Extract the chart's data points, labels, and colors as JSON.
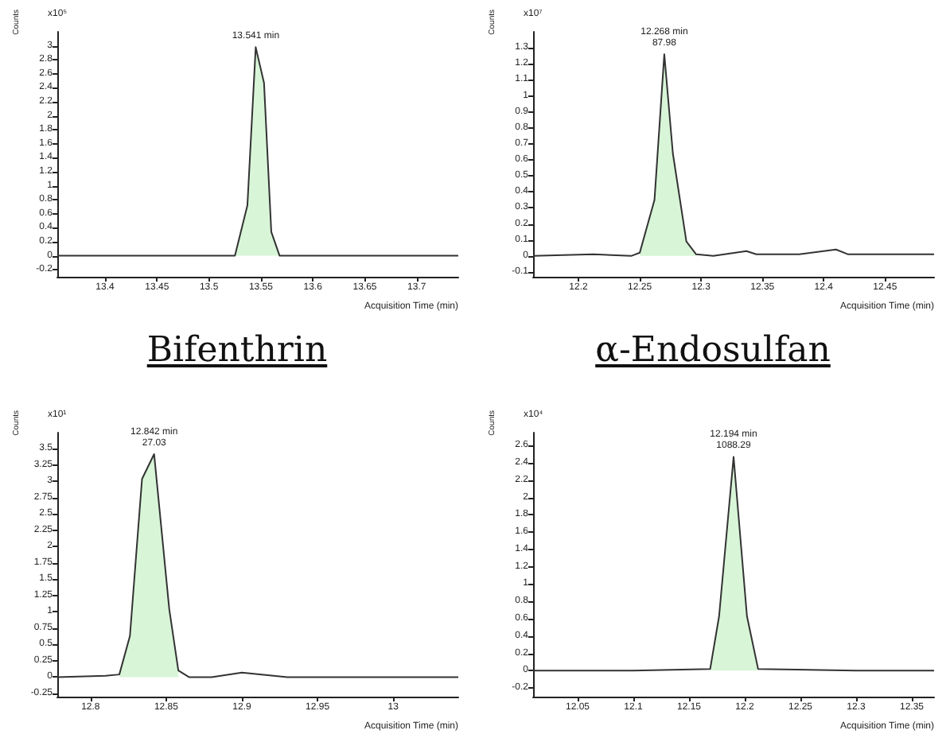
{
  "chart_data": [
    {
      "type": "line",
      "title": "Bifenthrin",
      "xlabel": "Acquisition Time (min)",
      "ylabel": "Counts",
      "marker": "none",
      "line_style": "solid",
      "grid": false,
      "annotations": [
        "x10⁵",
        {
          "text": "13.541 min",
          "x": 13.545,
          "y": 2.98
        }
      ],
      "xlim": [
        13.354,
        13.74
      ],
      "xticks": [
        13.4,
        13.45,
        13.5,
        13.55,
        13.6,
        13.65,
        13.7
      ],
      "ylim": [
        -0.3,
        3.2
      ],
      "yticks": [
        -0.2,
        0,
        0.2,
        0.4,
        0.6,
        0.8,
        1,
        1.2,
        1.4,
        1.6,
        1.8,
        2,
        2.2,
        2.4,
        2.6,
        2.8,
        3
      ],
      "series": [
        {
          "type": "area",
          "color": "#d8f5d8",
          "x": [
            13.525,
            13.537,
            13.545,
            13.553,
            13.56,
            13.568
          ],
          "values": [
            0,
            0.72,
            2.98,
            2.47,
            0.34,
            0
          ]
        },
        {
          "color": "#333333",
          "x": [
            13.354,
            13.42,
            13.5,
            13.525,
            13.537,
            13.545,
            13.553,
            13.56,
            13.568,
            13.62,
            13.74
          ],
          "values": [
            0,
            0,
            0,
            0,
            0.72,
            2.98,
            2.47,
            0.34,
            0,
            0,
            0
          ]
        }
      ]
    },
    {
      "type": "line",
      "title": "α-Endosulfan",
      "xlabel": "Acquisition Time (min)",
      "ylabel": "Counts",
      "marker": "none",
      "line_style": "solid",
      "grid": false,
      "annotations": [
        "x10⁷",
        {
          "text": "12.268 min\n87.98",
          "x": 12.27,
          "y": 1.26
        }
      ],
      "xlim": [
        12.163,
        12.49
      ],
      "xticks": [
        12.2,
        12.25,
        12.3,
        12.35,
        12.4,
        12.45
      ],
      "ylim": [
        -0.13,
        1.4
      ],
      "yticks": [
        -0.1,
        0,
        0.1,
        0.2,
        0.3,
        0.4,
        0.5,
        0.6,
        0.7,
        0.8,
        0.9,
        1,
        1.1,
        1.2,
        1.3
      ],
      "series": [
        {
          "type": "area",
          "color": "#d8f5d8",
          "x": [
            12.25,
            12.262,
            12.27,
            12.277,
            12.288,
            12.296
          ],
          "values": [
            0.02,
            0.35,
            1.26,
            0.64,
            0.09,
            0.01
          ]
        },
        {
          "color": "#333333",
          "x": [
            12.163,
            12.212,
            12.243,
            12.25,
            12.262,
            12.27,
            12.277,
            12.288,
            12.296,
            12.31,
            12.337,
            12.345,
            12.38,
            12.41,
            12.42,
            12.45,
            12.49
          ],
          "values": [
            0,
            0.01,
            0,
            0.02,
            0.35,
            1.26,
            0.64,
            0.09,
            0.01,
            0,
            0.03,
            0.01,
            0.01,
            0.04,
            0.01,
            0.01,
            0.01
          ]
        }
      ]
    },
    {
      "type": "line",
      "xlabel": "Acquisition Time (min)",
      "ylabel": "Counts",
      "marker": "none",
      "line_style": "solid",
      "grid": false,
      "annotations": [
        "x10¹",
        {
          "text": "12.842 min\n27.03",
          "x": 12.842,
          "y": 3.42
        }
      ],
      "xlim": [
        12.778,
        13.043
      ],
      "xticks": [
        12.8,
        12.85,
        12.9,
        12.95,
        13
      ],
      "ylim": [
        -0.3,
        3.75
      ],
      "yticks": [
        -0.25,
        0,
        0.25,
        0.5,
        0.75,
        1,
        1.25,
        1.5,
        1.75,
        2,
        2.25,
        2.5,
        2.75,
        3,
        3.25,
        3.5
      ],
      "series": [
        {
          "type": "area",
          "color": "#d8f5d8",
          "x": [
            12.819,
            12.826,
            12.834,
            12.842,
            12.852,
            12.858
          ],
          "values": [
            0.04,
            0.63,
            3.04,
            3.42,
            1.04,
            0.1
          ]
        },
        {
          "color": "#333333",
          "x": [
            12.778,
            12.81,
            12.819,
            12.826,
            12.834,
            12.842,
            12.852,
            12.858,
            12.865,
            12.88,
            12.9,
            12.93,
            12.99,
            13.043
          ],
          "values": [
            0,
            0.02,
            0.04,
            0.63,
            3.04,
            3.42,
            1.04,
            0.1,
            0,
            0,
            0.07,
            0,
            0,
            0
          ]
        }
      ]
    },
    {
      "type": "line",
      "xlabel": "Acquisition Time (min)",
      "ylabel": "Counts",
      "marker": "none",
      "line_style": "solid",
      "grid": false,
      "annotations": [
        "x10⁴",
        {
          "text": "12.194 min\n1088.29",
          "x": 12.19,
          "y": 2.47
        }
      ],
      "xlim": [
        12.01,
        12.37
      ],
      "xticks": [
        12.05,
        12.1,
        12.15,
        12.2,
        12.25,
        12.3,
        12.35
      ],
      "ylim": [
        -0.3,
        2.75
      ],
      "yticks": [
        -0.2,
        0,
        0.2,
        0.4,
        0.6,
        0.8,
        1,
        1.2,
        1.4,
        1.6,
        1.8,
        2,
        2.2,
        2.4,
        2.6
      ],
      "series": [
        {
          "type": "area",
          "color": "#d8f5d8",
          "x": [
            12.169,
            12.177,
            12.19,
            12.202,
            12.212
          ],
          "values": [
            0.02,
            0.63,
            2.47,
            0.63,
            0.02
          ]
        },
        {
          "color": "#333333",
          "x": [
            12.01,
            12.1,
            12.169,
            12.177,
            12.19,
            12.202,
            12.212,
            12.3,
            12.37
          ],
          "values": [
            0,
            0,
            0.02,
            0.63,
            2.47,
            0.63,
            0.02,
            0,
            0
          ]
        }
      ]
    }
  ]
}
